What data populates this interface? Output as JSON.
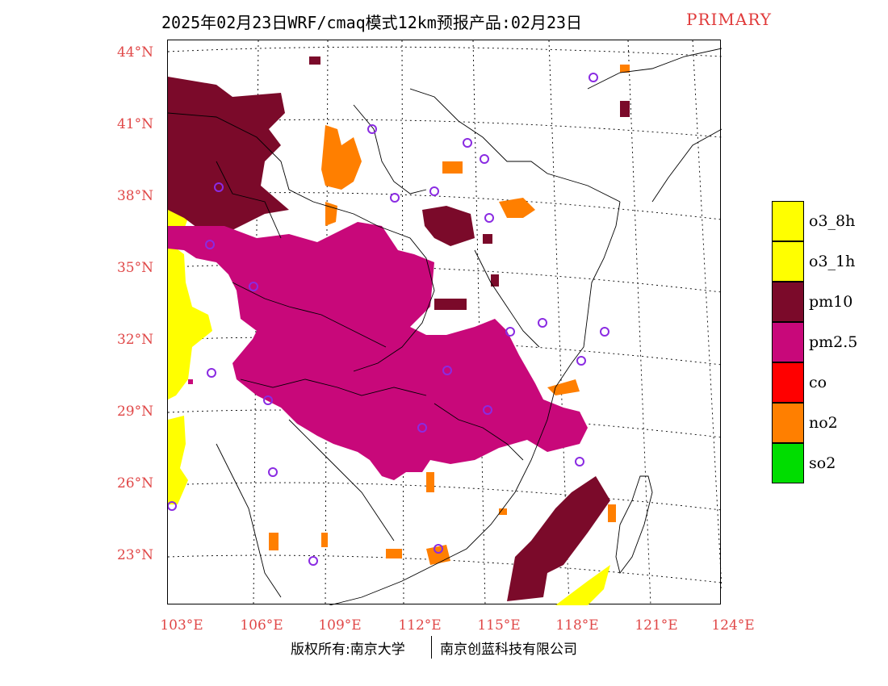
{
  "title": {
    "main": "2025年02月23日WRF/cmaq模式12km预报产品:02月23日",
    "tag": "PRIMARY"
  },
  "axes": {
    "lat_labels": [
      "44°N",
      "41°N",
      "38°N",
      "35°N",
      "32°N",
      "29°N",
      "26°N",
      "23°N"
    ],
    "lon_labels": [
      "103°E",
      "106°E",
      "109°E",
      "112°E",
      "115°E",
      "118°E",
      "121°E",
      "124°E"
    ]
  },
  "legend": {
    "items": [
      {
        "label": "o3_8h",
        "color": "#ffff00"
      },
      {
        "label": "o3_1h",
        "color": "#ffff00"
      },
      {
        "label": "pm10",
        "color": "#7b0a2a"
      },
      {
        "label": "pm2.5",
        "color": "#c8087a"
      },
      {
        "label": "co",
        "color": "#ff0000"
      },
      {
        "label": "no2",
        "color": "#ff7f00"
      },
      {
        "label": "so2",
        "color": "#00dd00"
      }
    ]
  },
  "footer": {
    "left": "版权所有:南京大学",
    "right": "南京创蓝科技有限公司"
  },
  "colors": {
    "accent_text": "#e04848",
    "pm10": "#7b0a2a",
    "pm25": "#c8087a",
    "no2": "#ff7f00",
    "o3": "#ffff00",
    "station": "#8a2be2"
  }
}
